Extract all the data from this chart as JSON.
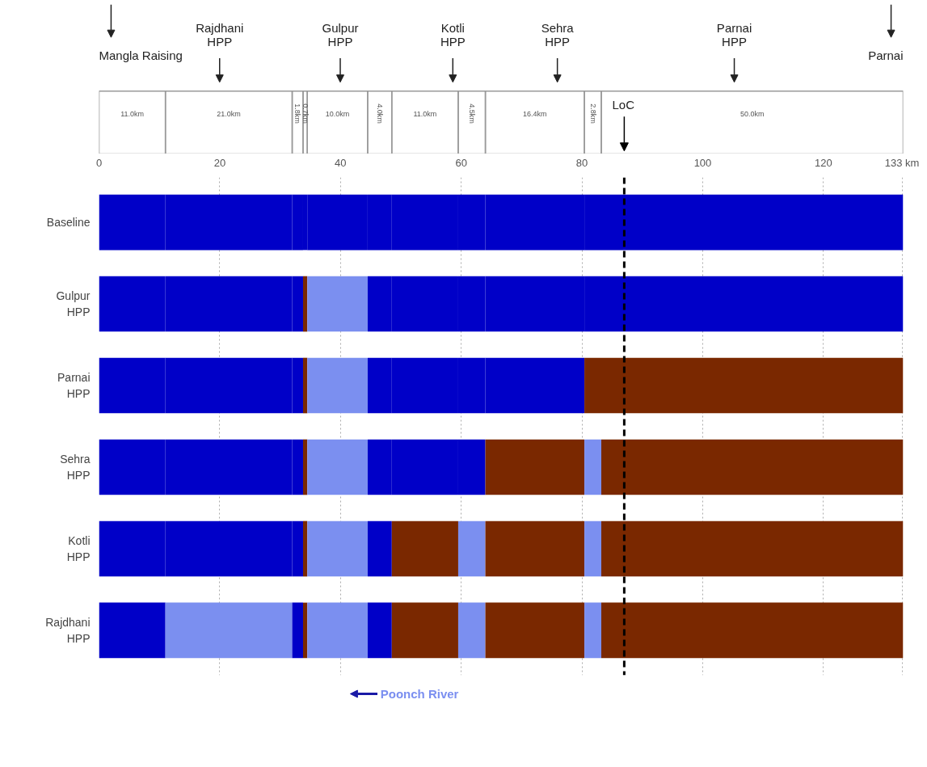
{
  "chart_data": {
    "type": "bar",
    "orientation": "horizontal",
    "stacked": true,
    "categories": [
      "Baseline",
      "Gulpur HPP",
      "Parnai HPP",
      "Sehra HPP",
      "Kotli HPP",
      "Rajdhani HPP"
    ],
    "series": [
      {
        "values": [
          11.0,
          11.0,
          11.0,
          11.0,
          11.0,
          11.0
        ],
        "colors": [
          "#0000c8",
          "#0000c8",
          "#0000c8",
          "#0000c8",
          "#0000c8",
          "#0000c8"
        ]
      },
      {
        "values": [
          21.0,
          21.0,
          21.0,
          21.0,
          21.0,
          21.0
        ],
        "colors": [
          "#0000c8",
          "#0000c8",
          "#0000c8",
          "#0000c8",
          "#0000c8",
          "#7b8ff0"
        ]
      },
      {
        "values": [
          1.8,
          1.8,
          1.8,
          1.8,
          1.8,
          1.8
        ],
        "colors": [
          "#0000c8",
          "#0000c8",
          "#0000c8",
          "#0000c8",
          "#0000c8",
          "#0000c8"
        ]
      },
      {
        "values": [
          0.7,
          0.7,
          0.7,
          0.7,
          0.7,
          0.7
        ],
        "colors": [
          "#0000c8",
          "#7a2800",
          "#7a2800",
          "#7a2800",
          "#7a2800",
          "#7a2800"
        ]
      },
      {
        "values": [
          10.0,
          10.0,
          10.0,
          10.0,
          10.0,
          10.0
        ],
        "colors": [
          "#0000c8",
          "#7b8ff0",
          "#7b8ff0",
          "#7b8ff0",
          "#7b8ff0",
          "#7b8ff0"
        ]
      },
      {
        "values": [
          4.0,
          4.0,
          4.0,
          4.0,
          4.0,
          4.0
        ],
        "colors": [
          "#0000c8",
          "#0000c8",
          "#0000c8",
          "#0000c8",
          "#0000c8",
          "#0000c8"
        ]
      },
      {
        "values": [
          11.0,
          11.0,
          11.0,
          11.0,
          11.0,
          11.0
        ],
        "colors": [
          "#0000c8",
          "#0000c8",
          "#0000c8",
          "#0000c8",
          "#7a2800",
          "#7a2800"
        ]
      },
      {
        "values": [
          4.5,
          4.5,
          4.5,
          4.5,
          4.5,
          4.5
        ],
        "colors": [
          "#0000c8",
          "#0000c8",
          "#0000c8",
          "#0000c8",
          "#7b8ff0",
          "#7b8ff0"
        ]
      },
      {
        "values": [
          16.4,
          16.4,
          16.4,
          16.4,
          16.4,
          16.4
        ],
        "colors": [
          "#0000c8",
          "#0000c8",
          "#0000c8",
          "#7a2800",
          "#7a2800",
          "#7a2800"
        ]
      },
      {
        "values": [
          2.8,
          2.8,
          2.8,
          2.8,
          2.8,
          2.8
        ],
        "colors": [
          "#0000c8",
          "#0000c8",
          "#7a2800",
          "#7b8ff0",
          "#7b8ff0",
          "#7b8ff0"
        ]
      },
      {
        "values": [
          50.0,
          50.0,
          50.0,
          50.0,
          50.0,
          50.0
        ],
        "colors": [
          "#0000c8",
          "#0000c8",
          "#7a2800",
          "#7a2800",
          "#7a2800",
          "#7a2800"
        ]
      }
    ],
    "xlim": [
      0,
      133.2
    ],
    "xticks": [
      0,
      20,
      40,
      60,
      80,
      100,
      120,
      {
        "value": 133,
        "label": "133 km"
      }
    ],
    "grid": "x",
    "ref_lines": [
      {
        "axis": "x",
        "value": 87,
        "label": "LoC",
        "color": "#000000",
        "line_style": "dashed"
      }
    ],
    "annotations": [
      "Mangla Raising",
      "Rajdhani HPP",
      "Gulpur HPP",
      "Kotli HPP",
      "Sehra HPP",
      "Parnai HPP",
      "Parnai",
      "11.0km",
      "21.0km",
      "1.8km",
      "0.7km",
      "10.0km",
      "4.0km",
      "11.0km",
      "4.5km",
      "16.4km",
      "2.8km",
      "50.0km",
      "Poonch River"
    ]
  }
}
